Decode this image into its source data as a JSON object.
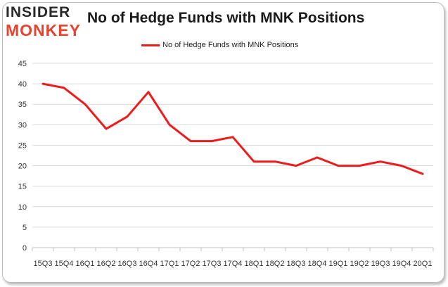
{
  "brand": {
    "logo_line1": "INSIDER",
    "logo_line2": "MONKEY",
    "logo_color_dark": "#2a2a2a",
    "logo_color_accent": "#e8432f"
  },
  "chart_data": {
    "type": "line",
    "title": "No of Hedge Funds with MNK Positions",
    "xlabel": "",
    "ylabel": "",
    "categories": [
      "15Q3",
      "15Q4",
      "16Q1",
      "16Q2",
      "16Q3",
      "16Q4",
      "17Q1",
      "17Q2",
      "17Q3",
      "17Q4",
      "18Q1",
      "18Q2",
      "18Q3",
      "18Q4",
      "19Q1",
      "19Q2",
      "19Q3",
      "19Q4",
      "20Q1"
    ],
    "series": [
      {
        "name": "No of Hedge Funds with MNK Positions",
        "color": "#ec1c1c",
        "values": [
          40,
          39,
          35,
          29,
          32,
          38,
          30,
          26,
          26,
          27,
          21,
          21,
          20,
          22,
          20,
          20,
          21,
          20,
          18
        ]
      }
    ],
    "ylim": [
      0,
      45
    ],
    "yticks": [
      0,
      5,
      10,
      15,
      20,
      25,
      30,
      35,
      40,
      45
    ],
    "grid": true,
    "legend_position": "top-center"
  }
}
